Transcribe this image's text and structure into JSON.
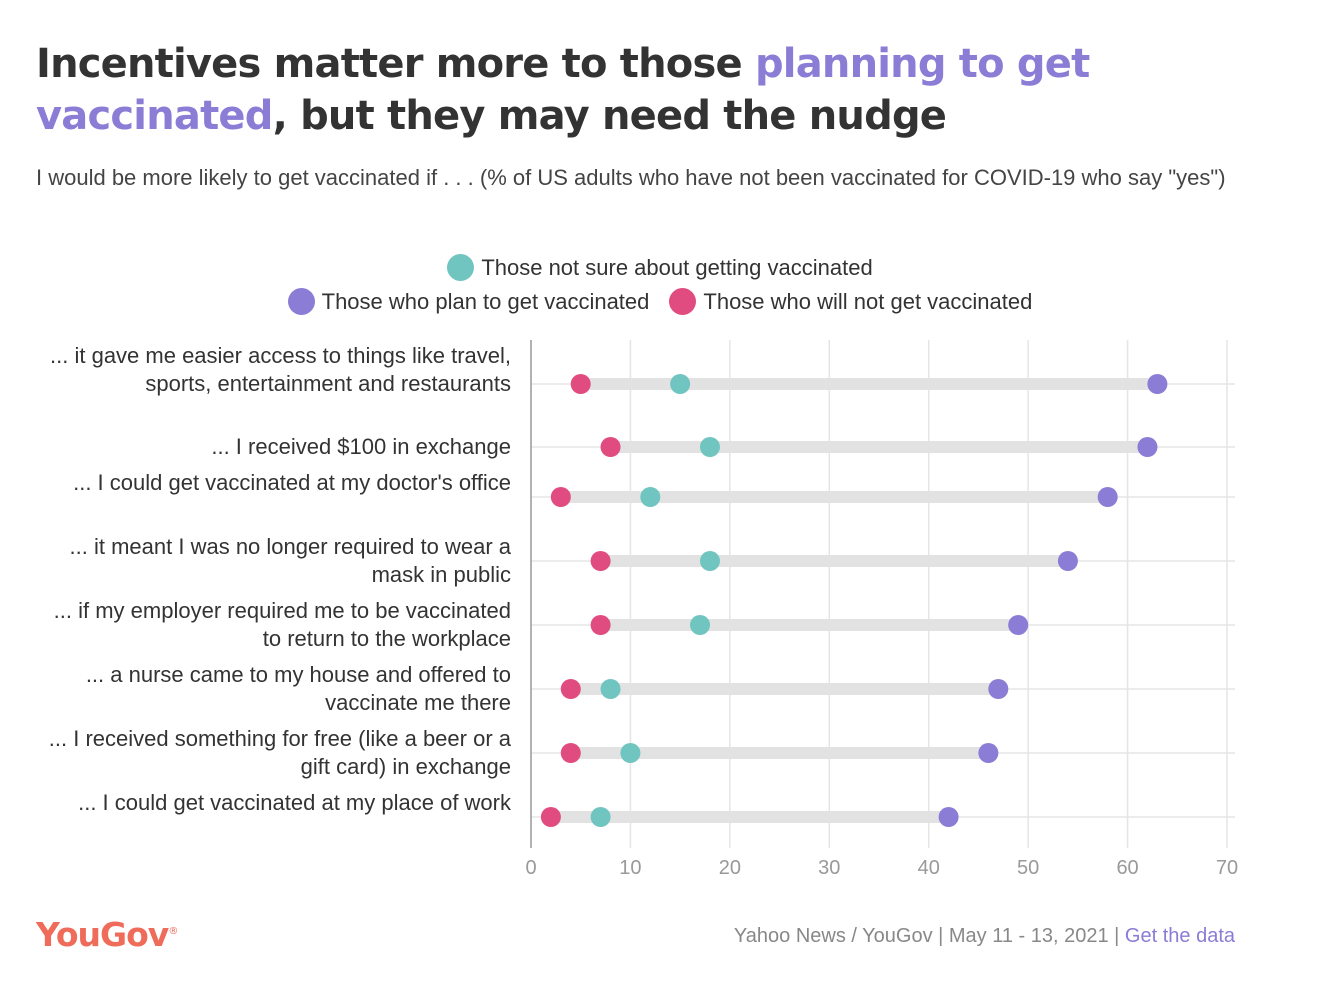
{
  "title": {
    "part1": "Incentives matter more to those ",
    "highlight": "planning to get vaccinated",
    "part2": ", but they may need the nudge"
  },
  "subtitle": "I would be more likely to get vaccinated if . . . (% of US adults who have not been vaccinated for COVID-19 who say \"yes\")",
  "footer": {
    "source": "Yahoo News / YouGov | May 11 - 13, 2021 | ",
    "link": "Get the data"
  },
  "logo": {
    "text": "YouGov",
    "mark": "®"
  },
  "colors": {
    "plan": "#8b7cd6",
    "not_sure": "#70c5c0",
    "will_not": "#e04c80",
    "connector": "#e2e2e2",
    "grid": "#e5e5e5",
    "axis": "#999999"
  },
  "chart_data": {
    "type": "dot_plot",
    "legend_placement": "top-center",
    "grid": true,
    "xlim": [
      0,
      70
    ],
    "xticks": [
      0,
      10,
      20,
      30,
      40,
      50,
      60,
      70
    ],
    "categories": [
      "... it gave me easier access to things like travel, sports, entertainment and restaurants",
      "... I received $100 in exchange",
      "... I could get vaccinated at my doctor's office",
      "... it meant I was no longer required to wear a mask in public",
      "... if my employer required me to be vaccinated to return to the workplace",
      "... a nurse came to my house and offered to vaccinate me there",
      "... I received something for free (like a beer or a gift card) in exchange",
      "... I could get vaccinated at my place of work"
    ],
    "series": [
      {
        "name": "Those not sure about getting vaccinated",
        "color": "#70c5c0",
        "values": [
          15,
          18,
          12,
          18,
          17,
          8,
          10,
          7
        ]
      },
      {
        "name": "Those who plan to get vaccinated",
        "color": "#8b7cd6",
        "values": [
          63,
          62,
          58,
          54,
          49,
          47,
          46,
          42
        ]
      },
      {
        "name": "Those who will not get vaccinated",
        "color": "#e04c80",
        "values": [
          5,
          8,
          3,
          7,
          7,
          4,
          4,
          2
        ]
      }
    ]
  }
}
